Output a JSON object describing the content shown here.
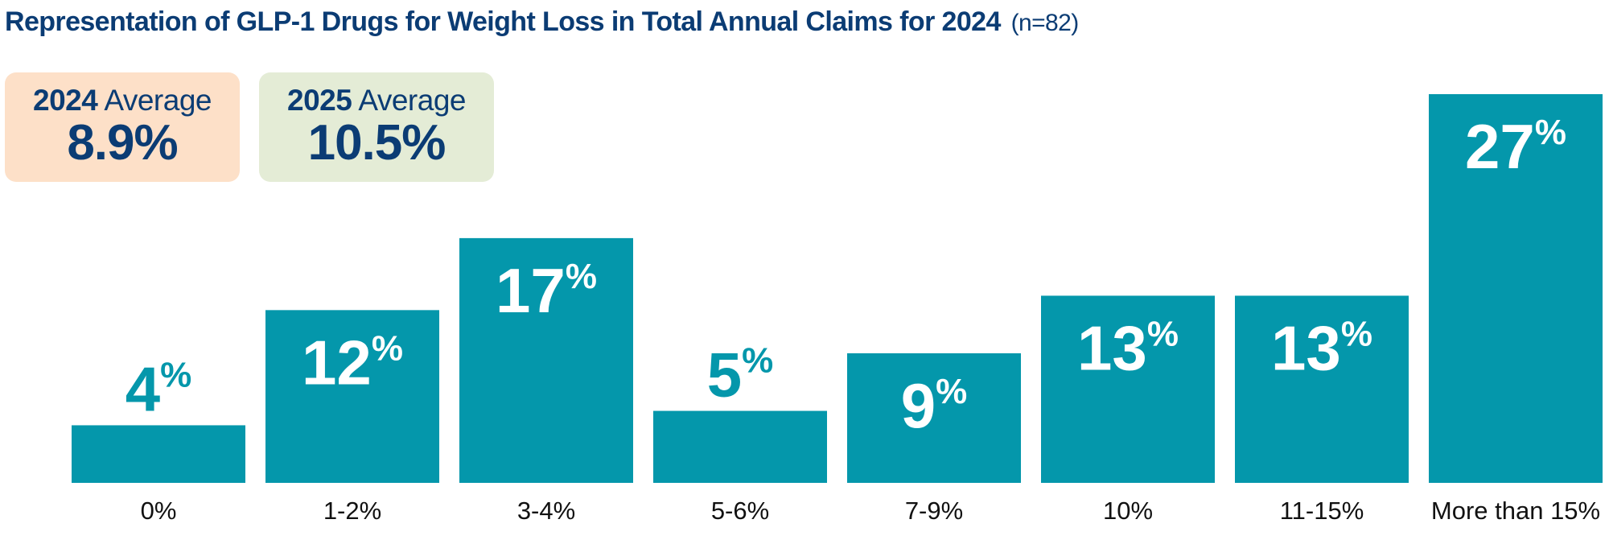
{
  "header": {
    "title": "Representation of GLP-1 Drugs for Weight Loss in Total Annual Claims for 2024",
    "sample": "(n=82)"
  },
  "stats": [
    {
      "year": "2024",
      "label": "Average",
      "value": "8.9%",
      "color": "#fde0c8"
    },
    {
      "year": "2025",
      "label": "Average",
      "value": "10.5%",
      "color": "#e4ecd6"
    }
  ],
  "colors": {
    "bar": "#0497ab",
    "title": "#0b3c74",
    "label_white": "#ffffff"
  },
  "chart_data": {
    "type": "bar",
    "categories": [
      "0%",
      "1-2%",
      "3-4%",
      "5-6%",
      "7-9%",
      "10%",
      "11-15%",
      "More than 15%"
    ],
    "values": [
      4,
      12,
      17,
      5,
      9,
      13,
      13,
      27
    ],
    "value_suffix": "%",
    "ylim": [
      0,
      27
    ],
    "grid": false
  }
}
